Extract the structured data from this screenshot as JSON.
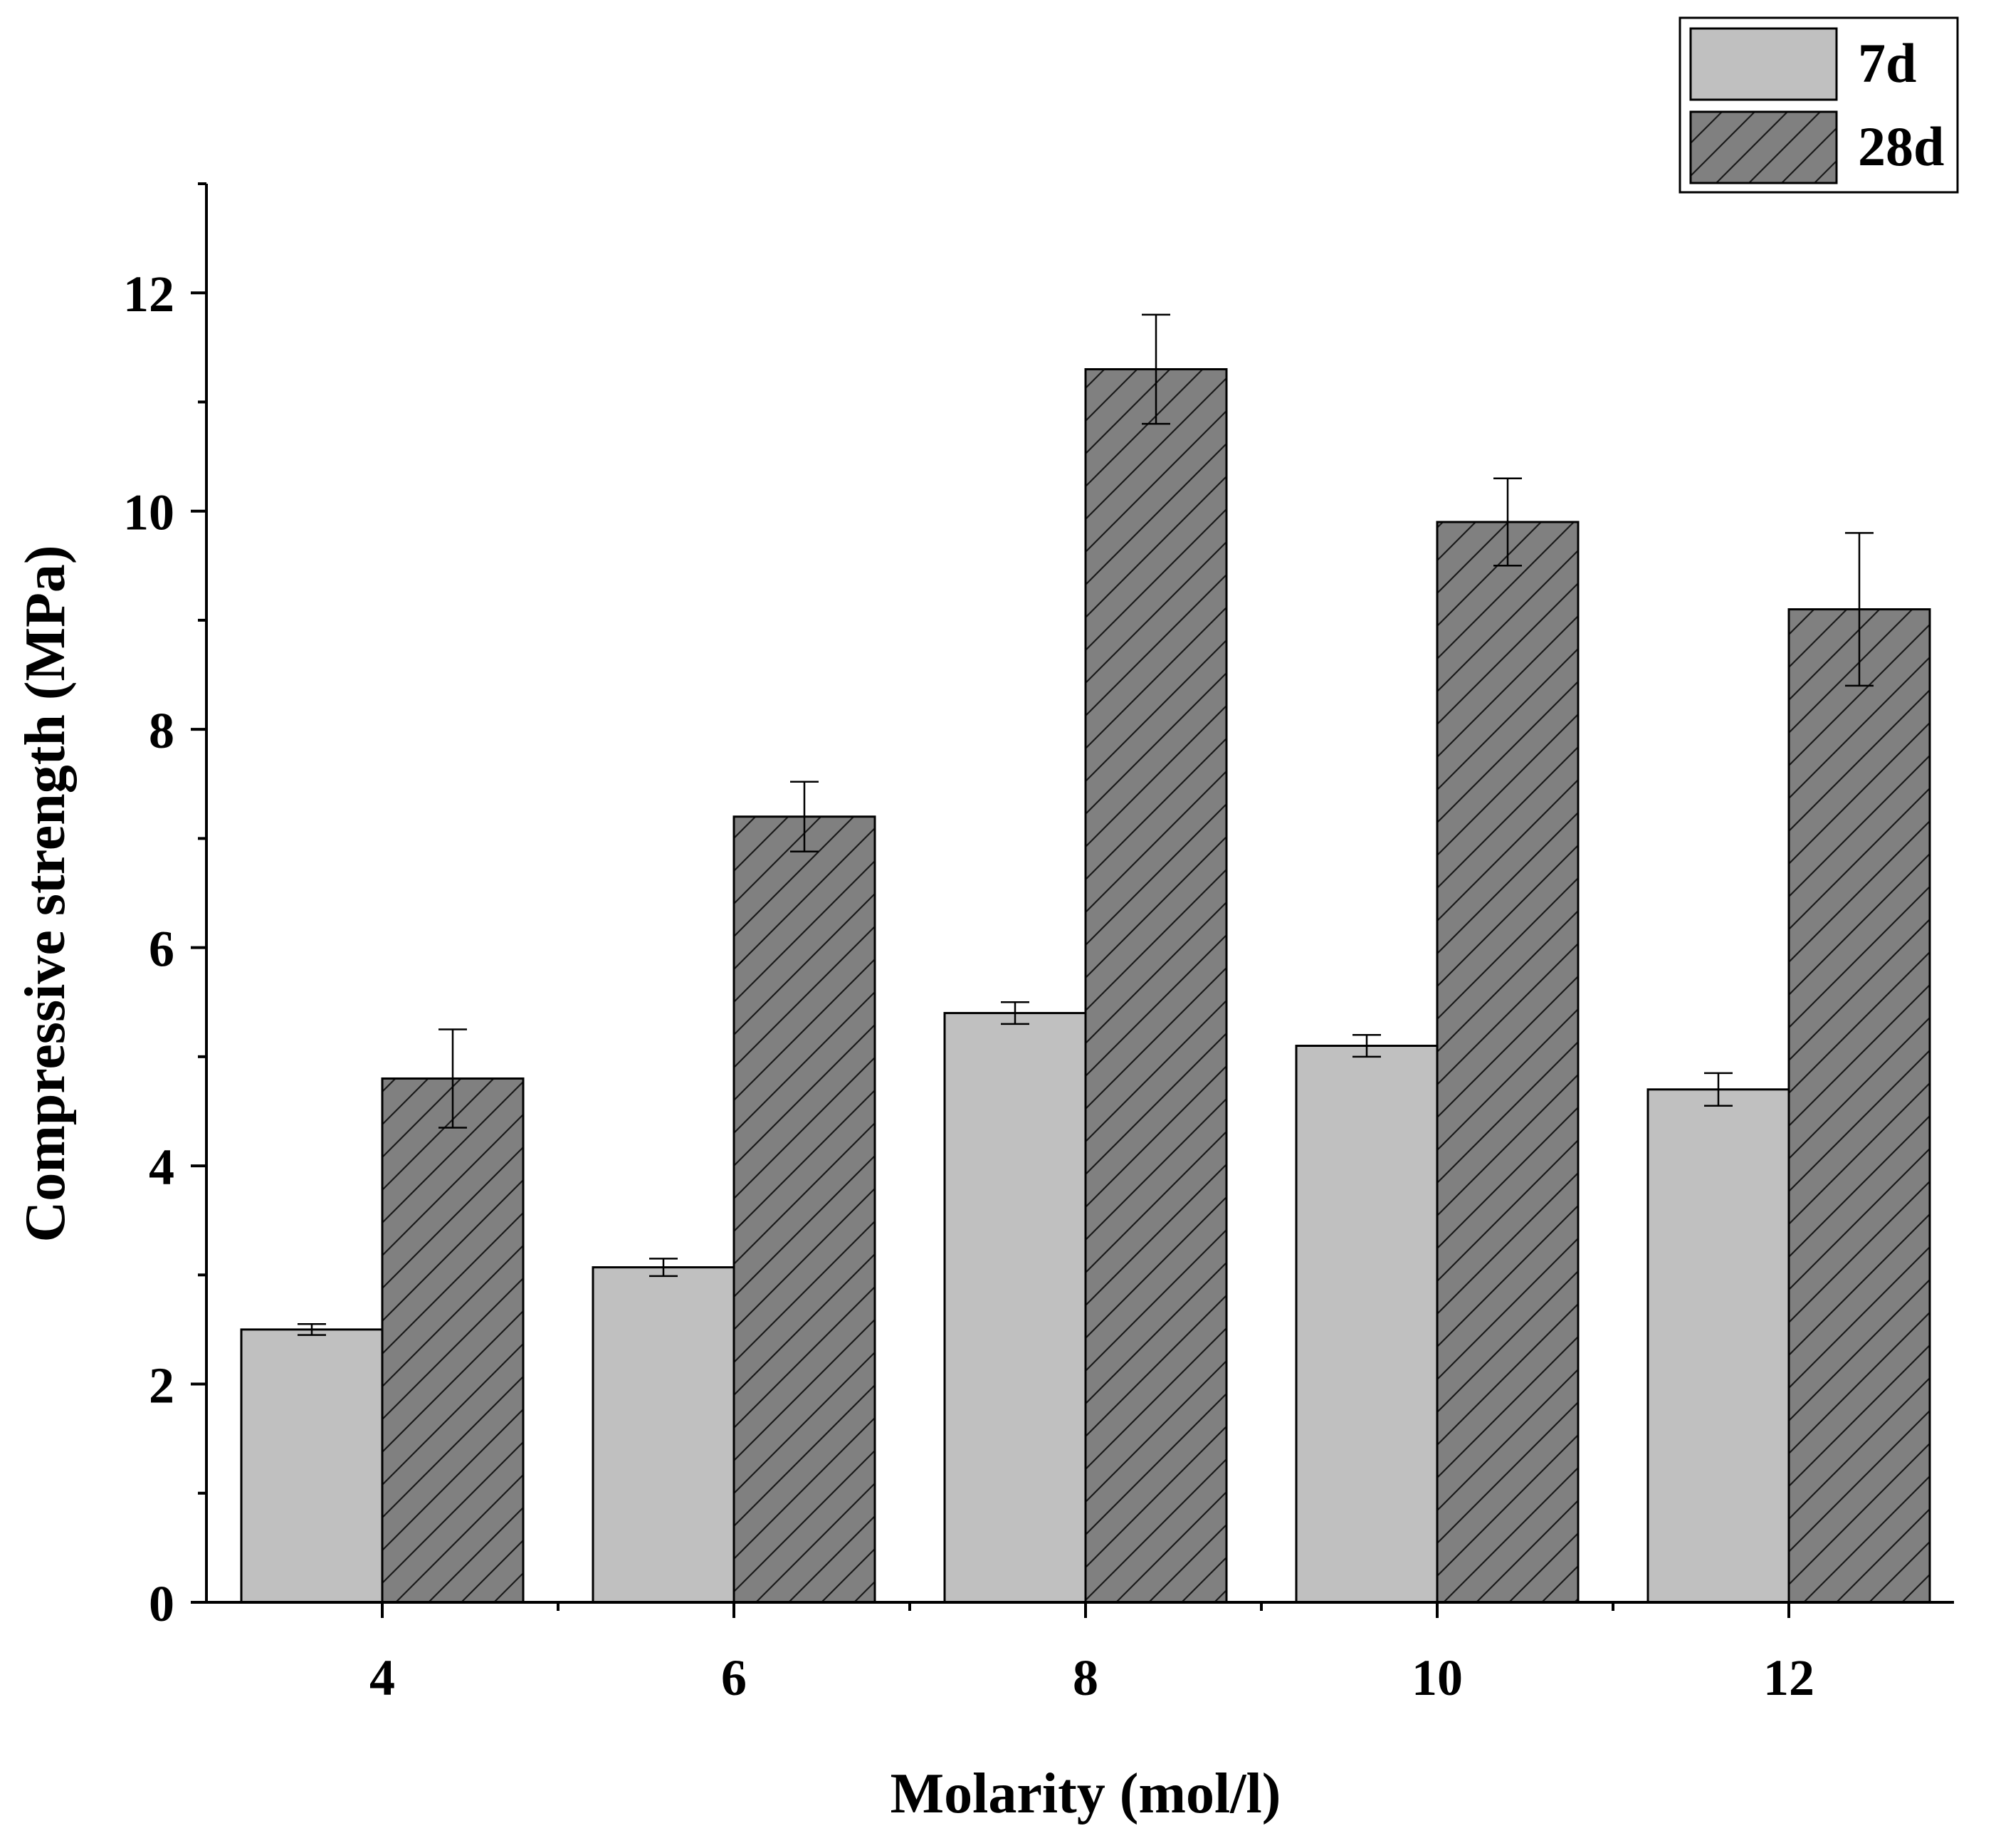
{
  "chart_data": {
    "type": "bar",
    "title": "",
    "xlabel": "Molarity (mol/l)",
    "ylabel": "Compressive strength (MPa)",
    "categories": [
      "4",
      "6",
      "8",
      "10",
      "12"
    ],
    "ylim": [
      0,
      13
    ],
    "yticks": [
      "0",
      "2",
      "4",
      "6",
      "8",
      "10",
      "12"
    ],
    "legend_position": "top-right",
    "series": [
      {
        "name": "7d",
        "color": "#c0c0c0",
        "pattern": "none",
        "values": [
          2.5,
          3.07,
          5.4,
          5.1,
          4.7
        ],
        "errors": [
          0.05,
          0.08,
          0.1,
          0.1,
          0.15
        ]
      },
      {
        "name": "28d",
        "color": "#808080",
        "pattern": "hatch",
        "values": [
          4.8,
          7.2,
          11.3,
          9.9,
          9.1
        ],
        "errors": [
          0.45,
          0.32,
          0.5,
          0.4,
          0.7
        ]
      }
    ]
  }
}
